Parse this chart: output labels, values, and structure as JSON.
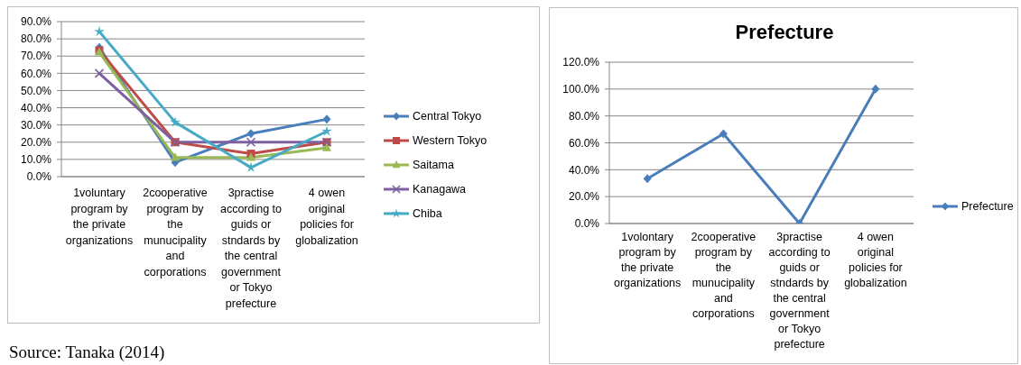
{
  "chart_data": [
    {
      "type": "line",
      "categories": [
        "1voluntary program by the private organizations",
        "2cooperative program by the munucipality and corporations",
        "3practise according to guids or stndards by the central government or Tokyo prefecture",
        "4 owen original policies for globalization"
      ],
      "series": [
        {
          "name": "Central Tokyo",
          "color": "#4a7ebb",
          "marker": "diamond",
          "values": [
            75,
            8.3,
            25,
            33.3
          ]
        },
        {
          "name": "Western Tokyo",
          "color": "#be4b48",
          "marker": "square",
          "values": [
            73.3,
            20,
            13.3,
            20
          ]
        },
        {
          "name": "Saitama",
          "color": "#98b954",
          "marker": "triangle",
          "values": [
            72.2,
            11.1,
            11.1,
            16.7
          ]
        },
        {
          "name": "Kanagawa",
          "color": "#7d60a0",
          "marker": "cross",
          "values": [
            60,
            20,
            20,
            20
          ]
        },
        {
          "name": "Chiba",
          "color": "#46aac5",
          "marker": "star",
          "values": [
            84.2,
            31.6,
            5.3,
            26.3
          ]
        }
      ],
      "ylim": [
        0,
        90
      ],
      "yticks": [
        {
          "value": 0,
          "label": "0.0%"
        },
        {
          "value": 10,
          "label": "10.0%"
        },
        {
          "value": 20,
          "label": "20.0%"
        },
        {
          "value": 30,
          "label": "30.0%"
        },
        {
          "value": 40,
          "label": "40.0%"
        },
        {
          "value": 50,
          "label": "50.0%"
        },
        {
          "value": 60,
          "label": "60.0%"
        },
        {
          "value": 70,
          "label": "70.0%"
        },
        {
          "value": 80,
          "label": "80.0%"
        },
        {
          "value": 90,
          "label": "90.0%"
        }
      ],
      "grid": "y",
      "legend": "right",
      "annotations": [
        "Source: Tanaka (2014)"
      ]
    },
    {
      "type": "line",
      "title": "Prefecture",
      "categories": [
        "1volontary program by the private organizations",
        "2cooperative program by the munucipality and corporations",
        "3practise according to guids or stndards by the central government or Tokyo prefecture",
        "4 owen original policies for globalization"
      ],
      "series": [
        {
          "name": "Prefecture",
          "color": "#4a7ebb",
          "marker": "diamond",
          "values": [
            33.3,
            66.7,
            0,
            100
          ]
        }
      ],
      "ylim": [
        0,
        120
      ],
      "yticks": [
        {
          "value": 0,
          "label": "0.0%"
        },
        {
          "value": 20,
          "label": "20.0%"
        },
        {
          "value": 40,
          "label": "40.0%"
        },
        {
          "value": 60,
          "label": "60.0%"
        },
        {
          "value": 80,
          "label": "80.0%"
        },
        {
          "value": 100,
          "label": "100.0%"
        },
        {
          "value": 120,
          "label": "120.0%"
        }
      ],
      "grid": "y",
      "legend": "right"
    }
  ]
}
